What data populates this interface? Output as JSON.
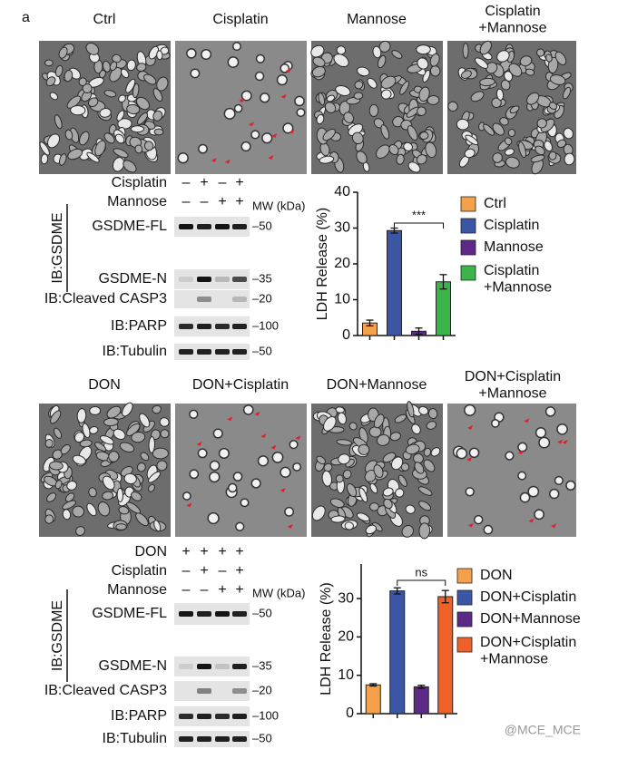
{
  "panel_label": "a",
  "top": {
    "image_labels": [
      "Ctrl",
      "Cisplatin",
      "Mannose",
      "Cisplatin\n+Mannose"
    ],
    "blot": {
      "conditions": [
        {
          "name": "Cisplatin",
          "signs": [
            "–",
            "+",
            "–",
            "+"
          ]
        },
        {
          "name": "Mannose",
          "signs": [
            "–",
            "–",
            "+",
            "+"
          ]
        }
      ],
      "group_label": "IB:GSDME",
      "mw_title": "MW (kDa)",
      "bands": [
        {
          "label": "GSDME-FL",
          "mw": "–50"
        },
        {
          "label": "GSDME-N",
          "mw": "–35"
        },
        {
          "label": "IB:Cleaved CASP3",
          "mw": "–20"
        },
        {
          "label": "IB:PARP",
          "mw": "–100"
        },
        {
          "label": "IB:Tubulin",
          "mw": "–50"
        }
      ]
    }
  },
  "bottom": {
    "image_labels": [
      "DON",
      "DON+Cisplatin",
      "DON+Mannose",
      "DON+Cisplatin\n+Mannose"
    ],
    "blot": {
      "conditions": [
        {
          "name": "DON",
          "signs": [
            "+",
            "+",
            "+",
            "+"
          ]
        },
        {
          "name": "Cisplatin",
          "signs": [
            "–",
            "+",
            "–",
            "+"
          ]
        },
        {
          "name": "Mannose",
          "signs": [
            "–",
            "–",
            "+",
            "+"
          ]
        }
      ],
      "group_label": "IB:GSDME",
      "mw_title": "MW (kDa)",
      "bands": [
        {
          "label": "GSDME-FL",
          "mw": "–50"
        },
        {
          "label": "GSDME-N",
          "mw": "–35"
        },
        {
          "label": "IB:Cleaved CASP3",
          "mw": "–20"
        },
        {
          "label": "IB:PARP",
          "mw": "–100"
        },
        {
          "label": "IB:Tubulin",
          "mw": "–50"
        }
      ]
    }
  },
  "chart_data": [
    {
      "type": "bar",
      "y_label": "LDH Release (%)",
      "categories": [
        "Ctrl",
        "Cisplatin",
        "Mannose",
        "Cisplatin\n+Mannose"
      ],
      "values": [
        3.5,
        29.3,
        1.2,
        15
      ],
      "errors": [
        0.8,
        0.7,
        0.9,
        2
      ],
      "colors": [
        "#f5a04a",
        "#3c56a6",
        "#5c2a86",
        "#3bb44a"
      ],
      "ylim": [
        0,
        40
      ],
      "yticks": [
        0,
        10,
        20,
        30,
        40
      ],
      "annotation": "***"
    },
    {
      "type": "bar",
      "y_label": "LDH Release (%)",
      "categories": [
        "DON",
        "DON+Cisplatin",
        "DON+Mannose",
        "DON+Cisplatin\n+Mannose"
      ],
      "values": [
        7.5,
        32,
        7,
        30.5
      ],
      "errors": [
        0.3,
        0.8,
        0.4,
        1.6
      ],
      "colors": [
        "#f5a04a",
        "#3c56a6",
        "#5c2a86",
        "#f0612a"
      ],
      "ylim": [
        0,
        39
      ],
      "yticks": [
        0,
        10,
        20,
        30
      ],
      "annotation": "ns"
    }
  ],
  "watermark": "@MCE_MCE"
}
